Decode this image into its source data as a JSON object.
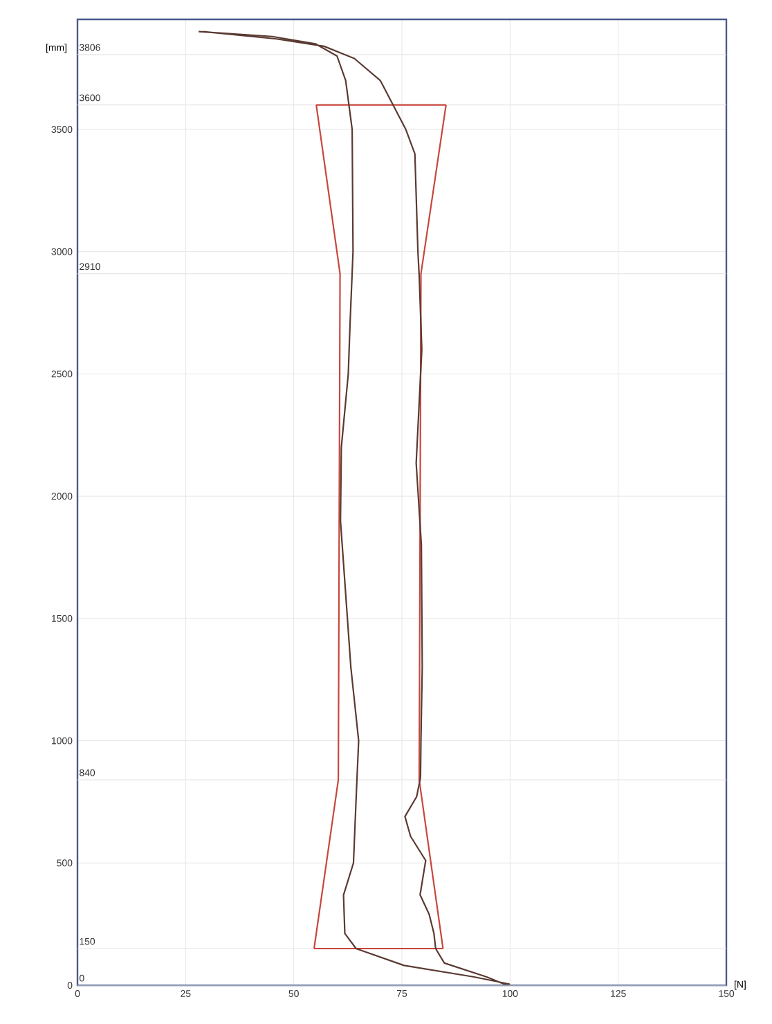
{
  "chart_data": {
    "type": "line",
    "xlabel": "[N]",
    "ylabel": "[mm]",
    "xlim": [
      0,
      150
    ],
    "xticks": [
      0,
      25,
      50,
      75,
      100,
      125,
      150
    ],
    "ylim": [
      0,
      3950
    ],
    "yticks": [
      0,
      500,
      1000,
      1500,
      2000,
      2500,
      3000,
      3500
    ],
    "grid": true,
    "series": [
      {
        "color": "#c8463c",
        "x": [
          54.7,
          60.3,
          60.7,
          55.2
        ],
        "values": [
          150,
          840,
          2910,
          3600
        ]
      },
      {
        "color": "#c8463c",
        "x": [
          55.2,
          85.2
        ],
        "values": [
          3600,
          3600
        ]
      },
      {
        "color": "#c8463c",
        "x": [
          85.2,
          79.4,
          79,
          84.5
        ],
        "values": [
          3600,
          2910,
          840,
          150
        ]
      },
      {
        "color": "#c8463c",
        "x": [
          84.5,
          54.7
        ],
        "values": [
          150,
          150
        ]
      },
      {
        "color": "#5a3a32",
        "x": [
          28,
          45,
          55,
          60,
          62,
          63.5,
          63.7,
          63,
          62.6,
          61,
          60.8,
          62.4,
          63.2,
          65,
          64.5,
          63.8,
          61.5,
          61.8,
          64.4,
          75.5,
          91.7,
          99.8,
          98.6,
          94.6,
          84.8,
          82.8,
          82.4,
          81.3,
          79.2,
          80.5,
          77,
          75.7,
          78.4,
          79.3,
          79.4,
          79.7,
          79.5,
          78.3,
          79.6,
          79,
          78.7,
          78,
          75.9,
          70,
          64,
          57,
          46,
          29
        ],
        "values": [
          3900,
          3880,
          3850,
          3800,
          3700,
          3500,
          3000,
          2700,
          2500,
          2200,
          1900,
          1500,
          1300,
          1000,
          800,
          500,
          369,
          212,
          150,
          81,
          34,
          5,
          5,
          34,
          91,
          150,
          212,
          290,
          370,
          510,
          609,
          690,
          771,
          850,
          1000,
          1300,
          1800,
          2135,
          2600,
          2900,
          3000,
          3400,
          3500,
          3700,
          3790,
          3840,
          3870,
          3900
        ]
      }
    ],
    "ref_lines": [
      {
        "axis": "y",
        "value": 3806,
        "label": "3806",
        "color": "#e6e6e6"
      },
      {
        "axis": "y",
        "value": 3600,
        "label": "3600",
        "color": "#e6e6e6"
      },
      {
        "axis": "y",
        "value": 2910,
        "label": "2910",
        "color": "#e6e6e6"
      },
      {
        "axis": "y",
        "value": 840,
        "label": "840",
        "color": "#e6e6e6"
      },
      {
        "axis": "y",
        "value": 150,
        "label": "150",
        "color": "#e6e6e6"
      },
      {
        "axis": "y",
        "value": 0,
        "label": "0",
        "color": "#e6e6e6"
      }
    ]
  }
}
